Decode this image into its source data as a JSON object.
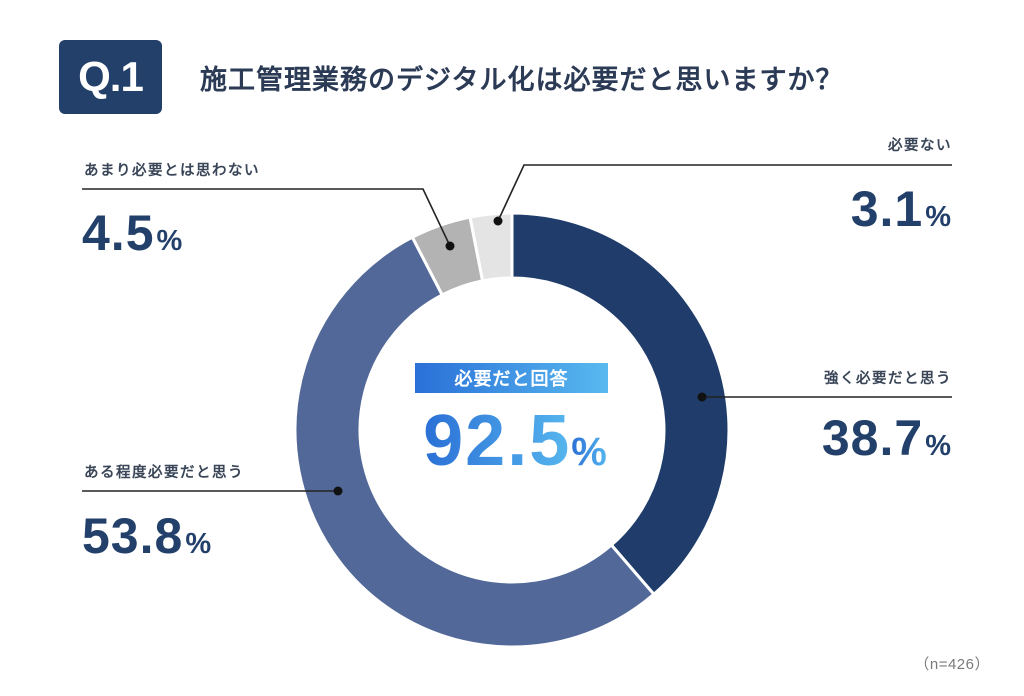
{
  "header": {
    "question_number": "Q.1",
    "question_text": "施工管理業務のデジタル化は必要だと思いますか？"
  },
  "center": {
    "badge_label": "必要だと回答",
    "value": "92.5",
    "unit": "%"
  },
  "labels": {
    "strongly": {
      "label": "強く必要だと思う",
      "value": "38.7",
      "unit": "%"
    },
    "somewhat": {
      "label": "ある程度必要だと思う",
      "value": "53.8",
      "unit": "%"
    },
    "not_really": {
      "label": "あまり必要とは思わない",
      "value": "4.5",
      "unit": "%"
    },
    "not_needed": {
      "label": "必要ない",
      "value": "3.1",
      "unit": "%"
    }
  },
  "footer": {
    "sample_size": "（n=426）"
  },
  "colors": {
    "strongly": "#1f3c6b",
    "somewhat": "#526898",
    "not_really": "#b3b3b3",
    "not_needed": "#e4e4e4",
    "title": "#2b3a55",
    "accent_gradient_start": "#2a70d8",
    "accent_gradient_end": "#58b9ef"
  },
  "chart_data": {
    "type": "pie",
    "variant": "donut",
    "title": "施工管理業務のデジタル化は必要だと思いますか？",
    "categories": [
      "強く必要だと思う",
      "ある程度必要だと思う",
      "あまり必要とは思わない",
      "必要ない"
    ],
    "values": [
      38.7,
      53.8,
      4.5,
      3.1
    ],
    "unit": "%",
    "start_angle_deg": 0,
    "direction": "clockwise",
    "center_annotation": {
      "label": "必要だと回答",
      "value": 92.5
    },
    "sample_size": 426,
    "colors": [
      "#1f3c6b",
      "#526898",
      "#b3b3b3",
      "#e4e4e4"
    ],
    "legend": "callout labels with leader lines"
  }
}
